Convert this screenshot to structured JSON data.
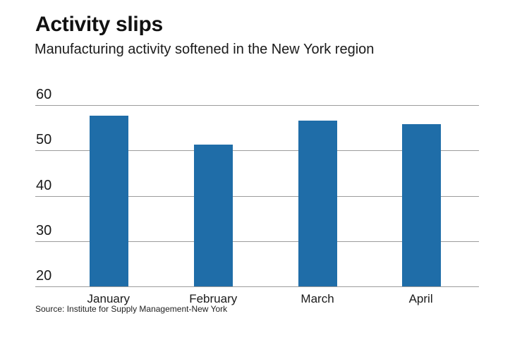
{
  "header": {
    "title": "Activity slips",
    "subtitle": "Manufacturing activity softened in the New York region"
  },
  "chart_data": {
    "type": "bar",
    "title": "Activity slips",
    "subtitle": "Manufacturing activity softened in the New York region",
    "categories": [
      "January",
      "February",
      "March",
      "April"
    ],
    "values": [
      57.7,
      51.3,
      56.5,
      55.8
    ],
    "xlabel": "",
    "ylabel": "",
    "ylim": [
      20,
      60
    ],
    "yticks": [
      20,
      30,
      40,
      50,
      60
    ],
    "grid": true,
    "legend": "none",
    "bar_color": "#1f6da8",
    "gridline_color": "#9c9c9c",
    "source": "Source: Institute for Supply Management-New York"
  },
  "footer": {
    "source": "Source: Institute for Supply Management-New York"
  }
}
